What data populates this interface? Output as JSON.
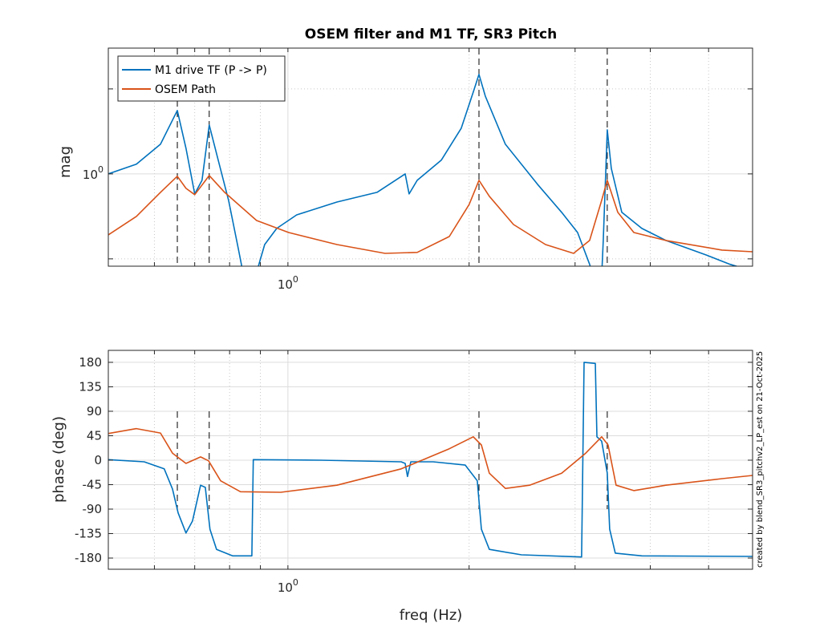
{
  "chart_data": [
    {
      "type": "line",
      "panel": "magnitude",
      "title": "OSEM filter and M1 TF, SR3 Pitch",
      "xlabel": "",
      "ylabel": "mag",
      "xscale": "log",
      "yscale": "log",
      "xlim": [
        0.503,
        5.916
      ],
      "ylim": [
        0.471,
        2.79
      ],
      "xticks": [
        {
          "value": 1,
          "base": "10",
          "exp": "0"
        }
      ],
      "yticks": [
        {
          "value": 1,
          "base": "10",
          "exp": "0"
        }
      ],
      "x_minor_grid": [
        0.6,
        0.7,
        0.8,
        0.9,
        2,
        3,
        4,
        5
      ],
      "y_minor_grid": [
        0.5,
        2
      ],
      "grid": true,
      "legend": {
        "placement": "top-left",
        "entries": [
          "M1 drive TF (P -> P)",
          "OSEM Path"
        ]
      },
      "vlines": [
        0.655,
        0.74,
        2.077,
        3.393
      ],
      "series": [
        {
          "name": "M1 drive TF (P -> P)",
          "color": "#0072bd",
          "x": [
            0.503,
            0.56,
            0.614,
            0.655,
            0.677,
            0.7,
            0.72,
            0.74,
            0.766,
            0.797,
            0.827,
            0.842,
            null,
            0.887,
            0.915,
            0.958,
            1.034,
            1.206,
            1.406,
            1.566,
            1.59,
            1.64,
            1.798,
            1.941,
            2.032,
            2.077,
            2.128,
            2.298,
            2.598,
            2.849,
            3.029,
            3.172,
            3.221,
            null,
            3.321,
            3.342,
            3.393,
            3.446,
            3.587,
            3.873,
            4.246,
            4.952,
            5.428,
            5.916
          ],
          "y": [
            1.0,
            1.082,
            1.274,
            1.677,
            1.233,
            0.849,
            0.949,
            1.49,
            1.118,
            0.806,
            0.544,
            0.448,
            null,
            0.448,
            0.562,
            0.641,
            0.716,
            0.795,
            0.86,
            1.0,
            0.849,
            0.949,
            1.118,
            1.452,
            1.949,
            2.251,
            1.886,
            1.274,
            0.919,
            0.731,
            0.62,
            0.478,
            0.433,
            null,
            0.433,
            0.581,
            1.433,
            1.047,
            0.731,
            0.641,
            0.581,
            0.516,
            0.478,
            0.453
          ]
        },
        {
          "name": "OSEM Path",
          "color": "#d95319",
          "x": [
            0.503,
            0.56,
            0.614,
            0.655,
            0.677,
            0.7,
            0.74,
            0.785,
            0.887,
            1.003,
            1.206,
            1.45,
            1.64,
            1.854,
            2.001,
            2.077,
            2.161,
            2.37,
            2.679,
            2.983,
            3.172,
            3.321,
            3.393,
            3.532,
            3.756,
            4.246,
            5.264,
            5.916
          ],
          "y": [
            0.608,
            0.707,
            0.86,
            0.981,
            0.889,
            0.844,
            0.987,
            0.86,
            0.684,
            0.62,
            0.562,
            0.523,
            0.527,
            0.6,
            0.78,
            0.949,
            0.833,
            0.662,
            0.562,
            0.523,
            0.581,
            0.806,
            0.949,
            0.731,
            0.62,
            0.581,
            0.537,
            0.53
          ]
        }
      ]
    },
    {
      "type": "line",
      "panel": "phase",
      "xlabel": "freq (Hz)",
      "ylabel": "phase (deg)",
      "xscale": "log",
      "xlim": [
        0.503,
        5.916
      ],
      "ylim": [
        -200.6,
        202
      ],
      "xticks": [
        {
          "value": 1,
          "base": "10",
          "exp": "0"
        }
      ],
      "x_minor_grid": [
        0.6,
        0.7,
        0.8,
        0.9,
        2,
        3,
        4,
        5
      ],
      "yticks": [
        180,
        135,
        90,
        45,
        0,
        -45,
        -90,
        -135,
        -180
      ],
      "ytick_labels": [
        "180",
        "135",
        "90",
        "45",
        "0",
        "-45",
        "-90",
        "-135",
        "-180"
      ],
      "grid": true,
      "vlines": [
        0.655,
        0.74,
        2.077,
        3.393
      ],
      "vline_range": [
        90,
        -90
      ],
      "annotation": "created by blend_SR3_pitchv2_LP_est on 21-Oct-2025",
      "series": [
        {
          "name": "M1 drive TF (P -> P)",
          "color": "#0072bd",
          "x": [
            0.503,
            0.577,
            0.623,
            0.643,
            0.657,
            0.677,
            0.694,
            0.716,
            0.729,
            0.742,
            0.761,
            0.809,
            0.871,
            0.876,
            1.134,
            1.542,
            1.566,
            1.58,
            1.6,
            1.743,
            1.971,
            2.064,
            2.096,
            2.161,
            2.443,
            3.076,
            3.105,
            3.241,
            3.261,
            3.321,
            3.393,
            3.425,
            3.499,
            3.873,
            5.916
          ],
          "y": [
            1,
            -3,
            -16,
            -53,
            -97,
            -134,
            -112,
            -46,
            -50,
            -127,
            -164,
            -176,
            -176,
            1,
            0,
            -3,
            -6,
            -30,
            -3,
            -3,
            -9,
            -38,
            -127,
            -164,
            -174,
            -178,
            180,
            178,
            43,
            35,
            -24,
            -127,
            -171,
            -176,
            -177
          ]
        },
        {
          "name": "OSEM Path",
          "color": "#d95319",
          "x": [
            0.503,
            0.56,
            0.614,
            0.643,
            0.677,
            0.716,
            0.738,
            0.773,
            0.834,
            0.973,
            1.206,
            1.542,
            1.854,
            2.032,
            2.096,
            2.161,
            2.298,
            2.52,
            2.849,
            3.124,
            3.321,
            3.404,
            3.51,
            3.756,
            4.246,
            5.264,
            5.916
          ],
          "y": [
            49,
            58,
            50,
            13,
            -6,
            6,
            -1,
            -38,
            -58,
            -59,
            -46,
            -16,
            21,
            43,
            28,
            -24,
            -52,
            -46,
            -24,
            13,
            43,
            28,
            -46,
            -56,
            -46,
            -34,
            -28
          ]
        }
      ]
    }
  ]
}
